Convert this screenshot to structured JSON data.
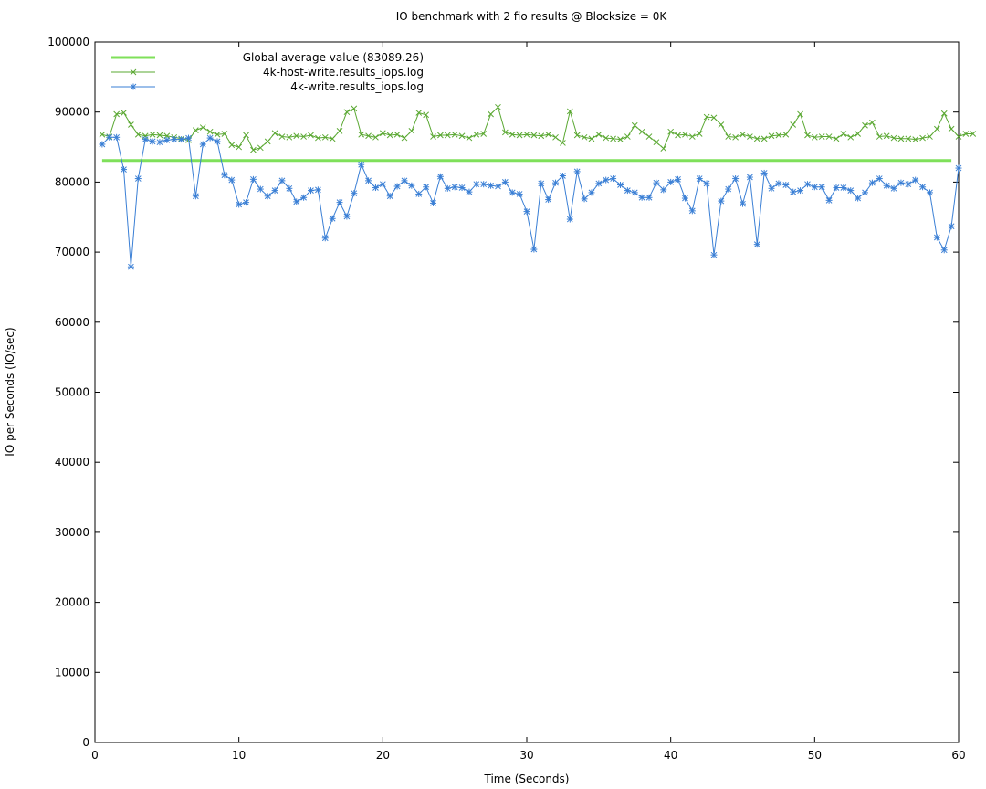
{
  "chart_data": {
    "type": "line",
    "title": "IO benchmark with 2 fio results @ Blocksize = 0K",
    "xlabel": "Time (Seconds)",
    "ylabel": "IO per Seconds (IO/sec)",
    "xlim": [
      0,
      60
    ],
    "ylim": [
      0,
      100000
    ],
    "xticks": [
      0,
      10,
      20,
      30,
      40,
      50,
      60
    ],
    "yticks": [
      0,
      10000,
      20000,
      30000,
      40000,
      50000,
      60000,
      70000,
      80000,
      90000,
      100000
    ],
    "grid": false,
    "legend_position": "top-left",
    "average": {
      "name": "Global average value (83089.26)",
      "value": 83089.26,
      "x_range": [
        0.5,
        59.5
      ],
      "color": "#7fe05a"
    },
    "series": [
      {
        "name": "4k-host-write.results_iops.log",
        "color": "#5aa832",
        "marker": "x",
        "x_start": 0.5,
        "x_step": 0.5,
        "values": [
          86800,
          86500,
          89700,
          89900,
          88200,
          86800,
          86600,
          86800,
          86700,
          86600,
          86400,
          86200,
          86000,
          87400,
          87800,
          87200,
          86800,
          86900,
          85300,
          85000,
          86700,
          84600,
          84900,
          85800,
          87000,
          86500,
          86400,
          86600,
          86500,
          86700,
          86300,
          86400,
          86200,
          87300,
          90000,
          90500,
          86800,
          86600,
          86400,
          87000,
          86700,
          86800,
          86300,
          87300,
          89900,
          89600,
          86500,
          86700,
          86700,
          86800,
          86600,
          86300,
          86800,
          86900,
          89700,
          90700,
          87100,
          86800,
          86700,
          86800,
          86700,
          86600,
          86800,
          86400,
          85600,
          90100,
          86700,
          86400,
          86200,
          86800,
          86300,
          86200,
          86100,
          86500,
          88100,
          87200,
          86500,
          85700,
          84800,
          87200,
          86700,
          86800,
          86500,
          86900,
          89300,
          89200,
          88200,
          86500,
          86400,
          86800,
          86500,
          86200,
          86200,
          86600,
          86700,
          86800,
          88200,
          89700,
          86700,
          86400,
          86500,
          86500,
          86200,
          86900,
          86400,
          86900,
          88100,
          88500,
          86500,
          86600,
          86300,
          86200,
          86200,
          86100,
          86300,
          86500,
          87600,
          89800,
          87600,
          86500,
          86900,
          86900
        ]
      },
      {
        "name": "4k-write.results_iops.log",
        "color": "#3a7fd5",
        "marker": "*",
        "x_start": 0.5,
        "x_step": 0.5,
        "values": [
          85400,
          86400,
          86400,
          81800,
          67900,
          80500,
          86100,
          85800,
          85700,
          86000,
          86100,
          86100,
          86300,
          78000,
          85400,
          86300,
          85800,
          81000,
          80300,
          76800,
          77100,
          80400,
          79000,
          78000,
          78800,
          80200,
          79100,
          77200,
          77800,
          78800,
          78900,
          72000,
          74800,
          77100,
          75100,
          78400,
          82500,
          80200,
          79200,
          79700,
          78000,
          79400,
          80200,
          79500,
          78300,
          79300,
          77000,
          80800,
          79100,
          79300,
          79200,
          78600,
          79700,
          79700,
          79500,
          79400,
          80000,
          78500,
          78300,
          75800,
          70400,
          79800,
          77500,
          79900,
          80900,
          74700,
          81500,
          77600,
          78500,
          79800,
          80300,
          80500,
          79600,
          78800,
          78500,
          77800,
          77800,
          79900,
          78900,
          80000,
          80400,
          77700,
          75900,
          80500,
          79800,
          69600,
          77300,
          79000,
          80500,
          76900,
          80700,
          71100,
          81300,
          79100,
          79800,
          79600,
          78600,
          78800,
          79700,
          79300,
          79300,
          77400,
          79200,
          79200,
          78800,
          77700,
          78500,
          79900,
          80500,
          79500,
          79100,
          79900,
          79700,
          80300,
          79300,
          78500,
          72100,
          70300,
          73700,
          82000
        ]
      }
    ]
  }
}
